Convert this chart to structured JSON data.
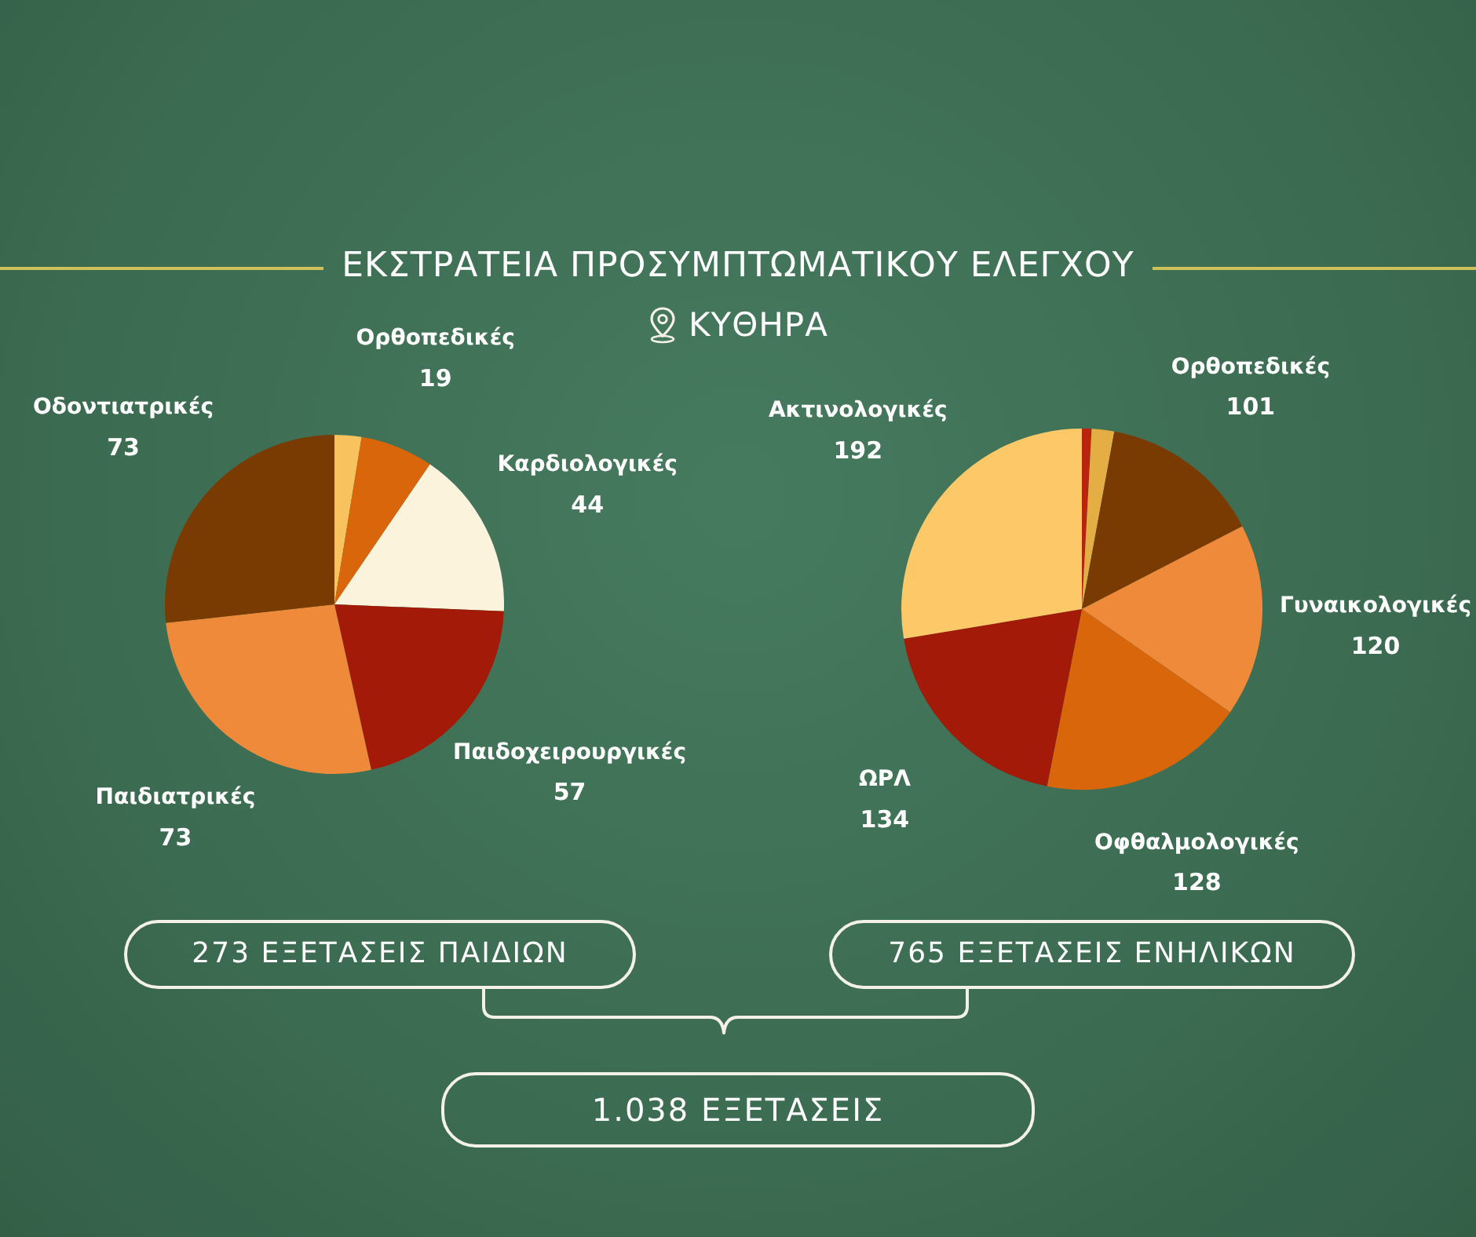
{
  "chart_data": [
    {
      "type": "pie",
      "title": "ΕΚΣΤΡΑΤΕΙΑ ΠΡΟΣΥΜΠΤΩΜΑΤΙΚΟΥ ΕΛΕΓΧΟΥ",
      "subtitle": "ΚΥΘΗΡΑ",
      "categories": [
        null,
        "Ορθοπεδικές",
        "Καρδιολογικές",
        "Παιδοχειρουργικές",
        "Παιδιατρικές",
        "Οδοντιατρικές"
      ],
      "values": [
        7,
        19,
        44,
        57,
        73,
        73
      ],
      "value_labels": [
        null,
        "19",
        "44",
        "57",
        "73",
        "73"
      ],
      "colors": [
        "#f8c35f",
        "#d9660a",
        "#fbf3dc",
        "#a31b08",
        "#ef8a3a",
        "#7a3b03"
      ],
      "annotations": [
        "273 ΕΞΕΤΑΣΕΙΣ ΠΑΙΔΙΩΝ",
        "1.038 ΕΞΕΤΑΣΕΙΣ"
      ]
    },
    {
      "type": "pie",
      "categories": [
        null,
        null,
        "Ορθοπεδικές",
        "Γυναικολογικές",
        "Οφθαλμολογικές",
        "ΩΡΛ",
        "Ακτινολογικές"
      ],
      "values": [
        6,
        14,
        101,
        120,
        128,
        134,
        192
      ],
      "value_labels": [
        null,
        null,
        "101",
        "120",
        "128",
        "134",
        "192"
      ],
      "colors": [
        "#b8240c",
        "#e5ae45",
        "#7a3b03",
        "#ef8a3a",
        "#d9660a",
        "#a31b08",
        "#fcc868"
      ],
      "annotations": [
        "765 ΕΞΕΤΑΣΕΙΣ ΕΝΗΛΙΚΩΝ"
      ]
    }
  ]
}
